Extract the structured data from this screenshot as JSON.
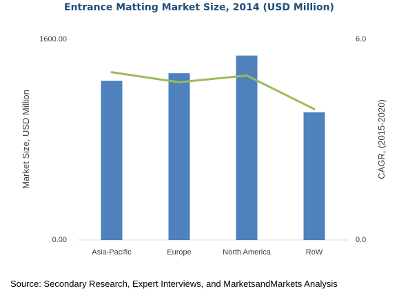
{
  "chart_data": {
    "type": "bar",
    "title": "Entrance Matting Market Size, 2014 (USD Million)",
    "categories": [
      "Asia-Pacific",
      "Europe",
      "North America",
      "RoW"
    ],
    "series": [
      {
        "type": "bar",
        "axis": "left",
        "values": [
          1265,
          1325,
          1465,
          1015
        ]
      },
      {
        "type": "line",
        "axis": "right",
        "values": [
          5.0,
          4.7,
          4.9,
          3.9
        ]
      }
    ],
    "ylabel": "Market Size, USD Million",
    "y2label": "CAGR, (2015-2020)",
    "ylim": [
      0,
      1600
    ],
    "y2lim": [
      0,
      6
    ],
    "y_ticks": [
      "0.00",
      "1600.00"
    ],
    "y2_ticks": [
      "0.0",
      "6.0"
    ],
    "grid": false,
    "legend": "none",
    "colors": {
      "bar": "#4f81bd",
      "line": "#9bbb59",
      "axis": "#d9d9d9",
      "title": "#1f4e79",
      "text": "#404040"
    }
  },
  "source": "Source: Secondary Research, Expert Interviews, and MarketsandMarkets Analysis"
}
